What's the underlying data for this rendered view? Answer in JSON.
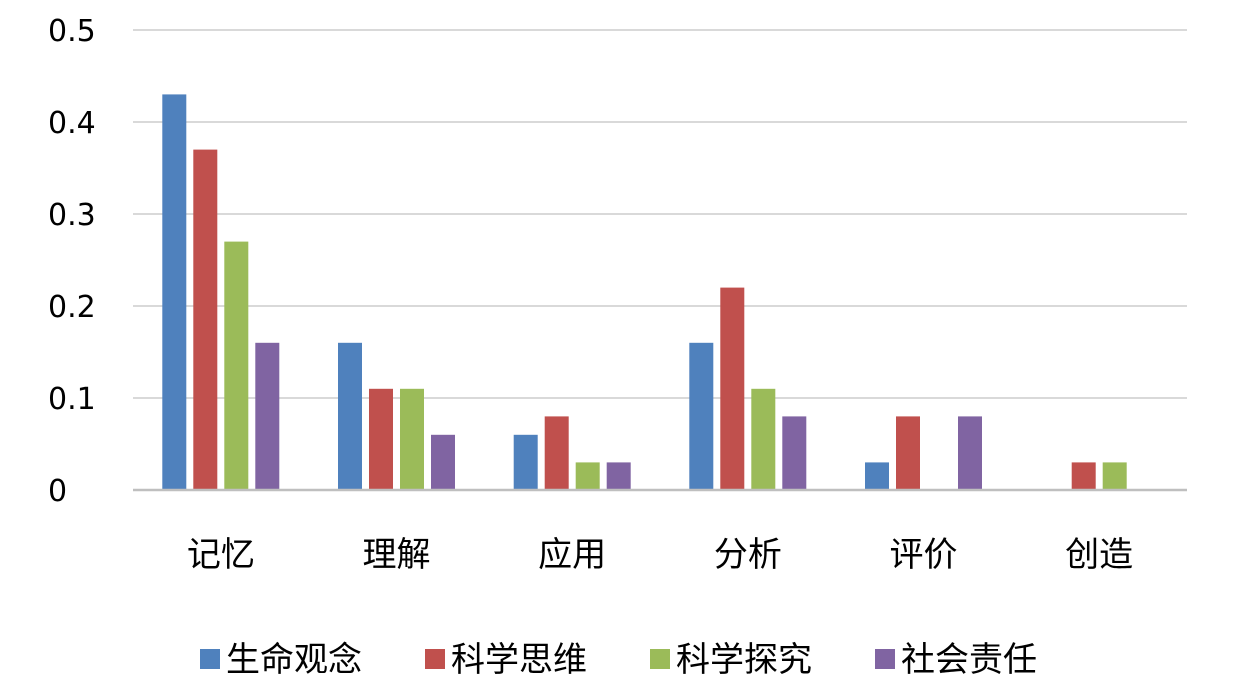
{
  "chart_data": {
    "type": "bar",
    "categories": [
      "记忆",
      "理解",
      "应用",
      "分析",
      "评价",
      "创造"
    ],
    "series": [
      {
        "name": "生命观念",
        "color": "#4f81bd",
        "values": [
          0.43,
          0.16,
          0.06,
          0.16,
          0.03,
          0
        ]
      },
      {
        "name": "科学思维",
        "color": "#c0504d",
        "values": [
          0.37,
          0.11,
          0.08,
          0.22,
          0.08,
          0.03
        ]
      },
      {
        "name": "科学探究",
        "color": "#9bbb59",
        "values": [
          0.27,
          0.11,
          0.03,
          0.11,
          0,
          0.03
        ]
      },
      {
        "name": "社会责任",
        "color": "#8064a2",
        "values": [
          0.16,
          0.06,
          0.03,
          0.08,
          0.08,
          0
        ]
      }
    ],
    "yticks": [
      "0",
      "0.1",
      "0.2",
      "0.3",
      "0.4",
      "0.5"
    ],
    "ylim": [
      0,
      0.5
    ],
    "grid": true,
    "legend_position": "bottom"
  }
}
